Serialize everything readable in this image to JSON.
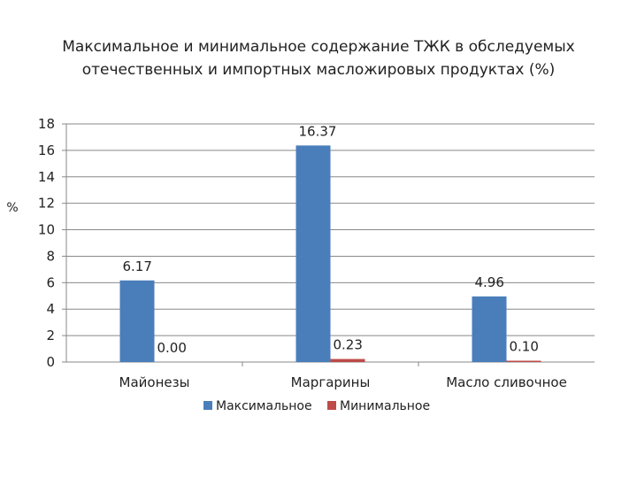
{
  "chart_data": {
    "type": "bar",
    "title_lines": [
      "Максимальное и минимальное содержание ТЖК в обследуемых",
      "отечественных и импортных масложировых продуктах (%)"
    ],
    "ylabel": "%",
    "xlabel": "",
    "ylim": [
      0,
      18
    ],
    "yticks": [
      "0",
      "2",
      "4",
      "6",
      "8",
      "10",
      "12",
      "14",
      "16",
      "18"
    ],
    "categories": [
      "Майонезы",
      "Маргарины",
      "Масло сливочное"
    ],
    "series": [
      {
        "name": "Максимальное",
        "color": "#4a7ebb",
        "values": [
          6.17,
          16.37,
          4.96
        ],
        "labels": [
          "6.17",
          "16.37",
          "4.96"
        ]
      },
      {
        "name": "Минимальное",
        "color": "#be4b48",
        "values": [
          0.0,
          0.23,
          0.1
        ],
        "labels": [
          "0.00",
          "0.23",
          "0.10"
        ]
      }
    ],
    "grid": true,
    "legend_position": "bottom"
  }
}
